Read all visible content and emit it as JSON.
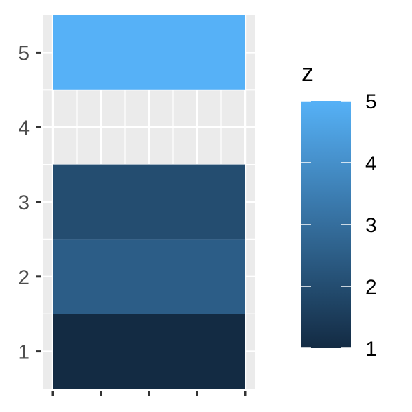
{
  "chart_data": {
    "type": "heatmap",
    "title": "",
    "xlabel": "",
    "ylabel": "",
    "x_ticks": [
      "",
      "",
      "",
      "",
      ""
    ],
    "y_ticks": [
      "1",
      "2",
      "3",
      "4",
      "5"
    ],
    "cells": [
      {
        "y": 1,
        "z": 1
      },
      {
        "y": 2,
        "z": 2.5
      },
      {
        "y": 3,
        "z": 2
      },
      {
        "y": 5,
        "z": 5
      }
    ],
    "ylim": [
      0.5,
      5.5
    ],
    "legend": {
      "title": "z",
      "position": "right",
      "min": 1,
      "max": 5,
      "ticks": [
        "1",
        "2",
        "3",
        "4",
        "5"
      ],
      "low_color": "#132B43",
      "high_color": "#56B1F7"
    },
    "panel_background": "#EBEBEB",
    "grid": true
  }
}
